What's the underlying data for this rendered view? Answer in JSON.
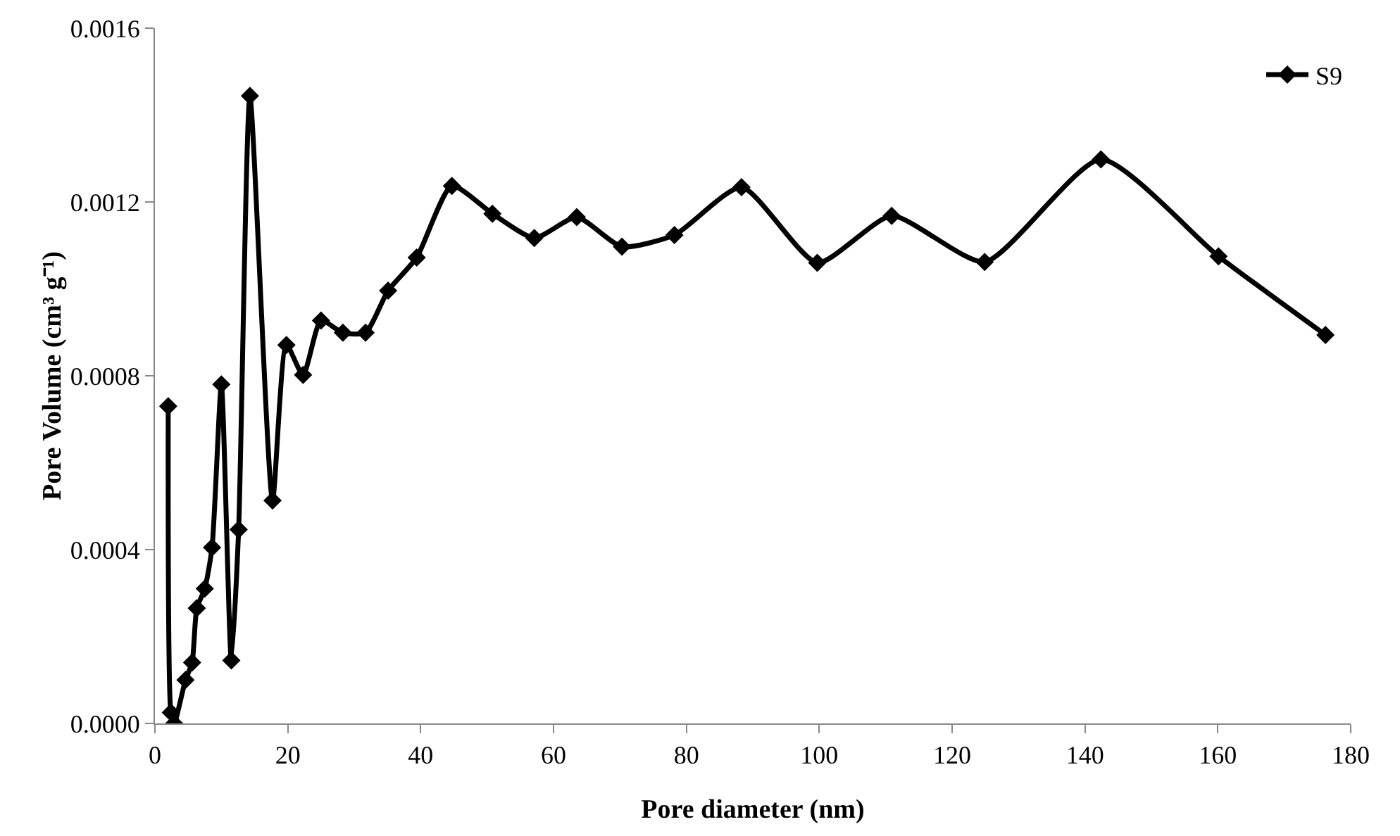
{
  "chart_data": {
    "type": "line",
    "xlabel": "Pore diameter (nm)",
    "ylabel": "Pore Volume (cm³ g⁻¹)",
    "xlim": [
      0,
      180
    ],
    "xticks": [
      0,
      20,
      40,
      60,
      80,
      100,
      120,
      140,
      160,
      180
    ],
    "ylim": [
      0,
      0.0016
    ],
    "yticks": [
      {
        "value": 0,
        "label": "0.0000"
      },
      0.0004,
      0.0008,
      0.0012,
      0.0016
    ],
    "grid": false,
    "legend": "top right",
    "marker": "diamond",
    "line_style": "solid",
    "series": [
      {
        "name": "S9",
        "color": "#000000",
        "x": [
          2.0,
          2.4,
          2.9,
          4.6,
          5.6,
          6.3,
          7.5,
          8.6,
          10.0,
          11.5,
          12.6,
          14.3,
          17.7,
          19.8,
          22.3,
          25.0,
          28.3,
          31.7,
          35.1,
          39.4,
          44.7,
          50.8,
          57.1,
          63.5,
          70.3,
          78.2,
          88.3,
          99.7,
          110.9,
          124.9,
          142.4,
          160.1,
          176.2
        ],
        "values": [
          0.00073,
          2.5e-05,
          0,
          0.0001,
          0.00014,
          0.000265,
          0.00031,
          0.000405,
          0.00078,
          0.000145,
          0.000446,
          0.001444,
          0.000513,
          0.000871,
          0.000802,
          0.000927,
          0.000899,
          0.000899,
          0.000996,
          0.001072,
          0.001237,
          0.001173,
          0.001117,
          0.001165,
          0.001097,
          0.001124,
          0.001234,
          0.00106,
          0.001168,
          0.001062,
          0.001298,
          0.001075,
          0.000894
        ]
      }
    ]
  }
}
